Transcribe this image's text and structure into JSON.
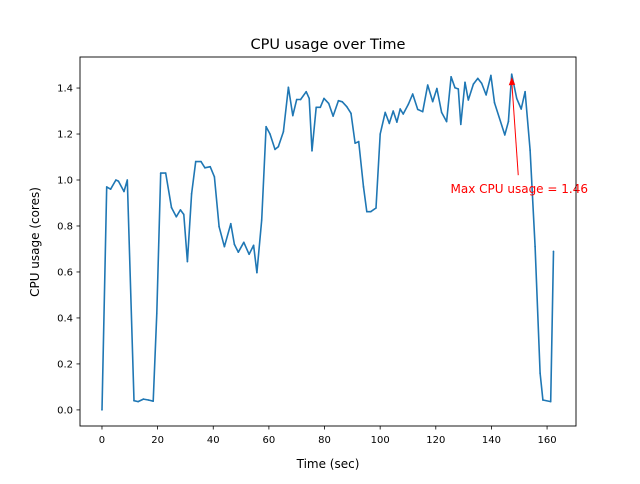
{
  "chart_data": {
    "type": "line",
    "title": "CPU usage over Time",
    "xlabel": "Time (sec)",
    "ylabel": "CPU usage (cores)",
    "xlim": [
      -7.9,
      170.4
    ],
    "ylim": [
      -0.07,
      1.535
    ],
    "xticks": [
      0,
      20,
      40,
      60,
      80,
      100,
      120,
      140,
      160
    ],
    "xtick_labels": [
      "0",
      "20",
      "40",
      "60",
      "80",
      "100",
      "120",
      "140",
      "160"
    ],
    "yticks": [
      0.0,
      0.2,
      0.4,
      0.6,
      0.8,
      1.0,
      1.2,
      1.4
    ],
    "ytick_labels": [
      "0.0",
      "0.2",
      "0.4",
      "0.6",
      "0.8",
      "1.0",
      "1.2",
      "1.4"
    ],
    "grid": false,
    "series": [
      {
        "name": "CPU usage",
        "color": "#1f77b4",
        "x": [
          0,
          1.7,
          3.1,
          5,
          5.9,
          7.9,
          9.1,
          11.5,
          13,
          14.9,
          16.7,
          18.4,
          19.7,
          21.1,
          22.9,
          25,
          26.7,
          28.2,
          29.4,
          30.7,
          32.2,
          33.7,
          35.6,
          37,
          38.9,
          40.4,
          42.1,
          44,
          46.3,
          47.6,
          49,
          51,
          52.9,
          54.5,
          55.7,
          57.4,
          59,
          60.4,
          62.2,
          63.4,
          65.2,
          67,
          68.6,
          70,
          71.4,
          73.4,
          74.5,
          75.5,
          77,
          78.5,
          79.8,
          81.5,
          83.1,
          85,
          86.4,
          88,
          89.5,
          91,
          92.3,
          94,
          95.2,
          96.6,
          98.5,
          100,
          101.8,
          103.3,
          104.7,
          106,
          107.2,
          108.3,
          110.1,
          111.7,
          113.5,
          115.3,
          117.1,
          118.9,
          120.4,
          122.1,
          123.9,
          125.5,
          126.9,
          128.1,
          129,
          130.5,
          131.7,
          133.5,
          135.1,
          136.5,
          138.1,
          139.8,
          141.1,
          144.8,
          146.1,
          147.3,
          149.1,
          150.7,
          152.1,
          153.9,
          155.7,
          157.5,
          158.5,
          161.3,
          162.3
        ],
        "y": [
          0.0,
          0.97,
          0.96,
          1.0,
          0.995,
          0.95,
          1.0,
          0.04,
          0.036,
          0.047,
          0.043,
          0.038,
          0.42,
          1.03,
          1.03,
          0.88,
          0.84,
          0.87,
          0.85,
          0.645,
          0.94,
          1.08,
          1.08,
          1.053,
          1.058,
          1.014,
          0.797,
          0.71,
          0.81,
          0.72,
          0.686,
          0.729,
          0.677,
          0.716,
          0.597,
          0.826,
          1.232,
          1.2,
          1.133,
          1.145,
          1.21,
          1.403,
          1.28,
          1.35,
          1.35,
          1.384,
          1.355,
          1.127,
          1.316,
          1.316,
          1.355,
          1.333,
          1.278,
          1.345,
          1.34,
          1.319,
          1.29,
          1.16,
          1.167,
          0.97,
          0.862,
          0.862,
          0.878,
          1.2,
          1.294,
          1.246,
          1.3,
          1.252,
          1.309,
          1.287,
          1.329,
          1.374,
          1.307,
          1.297,
          1.413,
          1.341,
          1.398,
          1.294,
          1.254,
          1.449,
          1.401,
          1.396,
          1.242,
          1.425,
          1.348,
          1.417,
          1.442,
          1.42,
          1.37,
          1.455,
          1.336,
          1.196,
          1.254,
          1.46,
          1.355,
          1.309,
          1.384,
          1.13,
          0.71,
          0.16,
          0.043,
          0.036,
          0.69
        ]
      }
    ],
    "annotations": [
      {
        "text": "Max CPU usage = 1.46",
        "color": "#ff0000",
        "xy": [
          147.3,
          1.46
        ],
        "xytext": [
          150,
          0.96
        ]
      }
    ]
  }
}
